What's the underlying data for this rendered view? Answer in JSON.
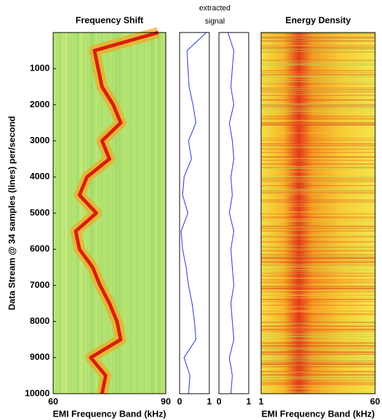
{
  "chart_data": [
    {
      "type": "line",
      "title": "Frequency Shift",
      "xlabel": "EMI Frequency Band (kHz)",
      "ylabel": "Data Stream @ 34 samples (lines) per/second",
      "xlim": [
        60,
        90
      ],
      "xticks": [
        60,
        90
      ],
      "ylim": [
        0,
        10000
      ],
      "y_reversed": true,
      "yticks": [
        1000,
        2000,
        3000,
        4000,
        5000,
        6000,
        7000,
        8000,
        9000,
        10000
      ],
      "x": [
        0,
        500,
        1000,
        1500,
        2000,
        2500,
        3000,
        3500,
        4000,
        4500,
        5000,
        5500,
        6000,
        6500,
        7000,
        7500,
        8000,
        8500,
        9000,
        9500,
        10000
      ],
      "values": [
        88,
        71,
        72,
        73,
        76,
        78,
        73,
        75,
        69,
        67,
        71.5,
        66,
        67,
        70.5,
        72.5,
        75,
        77,
        78,
        70,
        74,
        73
      ],
      "color": "#d81e05"
    },
    {
      "type": "line",
      "title": "extracted signal",
      "xlim": [
        0,
        1
      ],
      "xticks": [
        0,
        1
      ],
      "ylim": [
        0,
        10000
      ],
      "y_reversed": true,
      "x": [
        0,
        500,
        1000,
        1500,
        2000,
        2500,
        3000,
        3500,
        4000,
        4500,
        5000,
        5500,
        6000,
        6500,
        7000,
        7500,
        8000,
        8500,
        9000,
        9500,
        10000
      ],
      "values": [
        0.9,
        0.25,
        0.28,
        0.32,
        0.45,
        0.55,
        0.3,
        0.4,
        0.15,
        0.1,
        0.28,
        0.05,
        0.1,
        0.22,
        0.3,
        0.42,
        0.5,
        0.55,
        0.15,
        0.35,
        0.3
      ],
      "color": "#1f2fd6"
    },
    {
      "type": "line",
      "xlim": [
        0,
        1
      ],
      "xticks": [
        0,
        1
      ],
      "ylim": [
        0,
        10000
      ],
      "y_reversed": true,
      "x": [
        0,
        500,
        1000,
        1500,
        2000,
        2500,
        3000,
        3500,
        4000,
        4500,
        5000,
        5500,
        6000,
        6500,
        7000,
        7500,
        8000,
        8500,
        9000,
        9500,
        10000
      ],
      "values": [
        0.3,
        0.5,
        0.45,
        0.4,
        0.5,
        0.35,
        0.45,
        0.5,
        0.4,
        0.45,
        0.35,
        0.5,
        0.4,
        0.45,
        0.5,
        0.4,
        0.45,
        0.5,
        0.35,
        0.45,
        0.4
      ],
      "color": "#1f2fd6"
    },
    {
      "type": "heatmap",
      "title": "Energy Density",
      "xlabel": "EMI Frequency Band (kHz)",
      "xlim": [
        1,
        60
      ],
      "xticks": [
        1,
        60
      ],
      "ylim": [
        0,
        10000
      ],
      "y_reversed": true
    }
  ]
}
